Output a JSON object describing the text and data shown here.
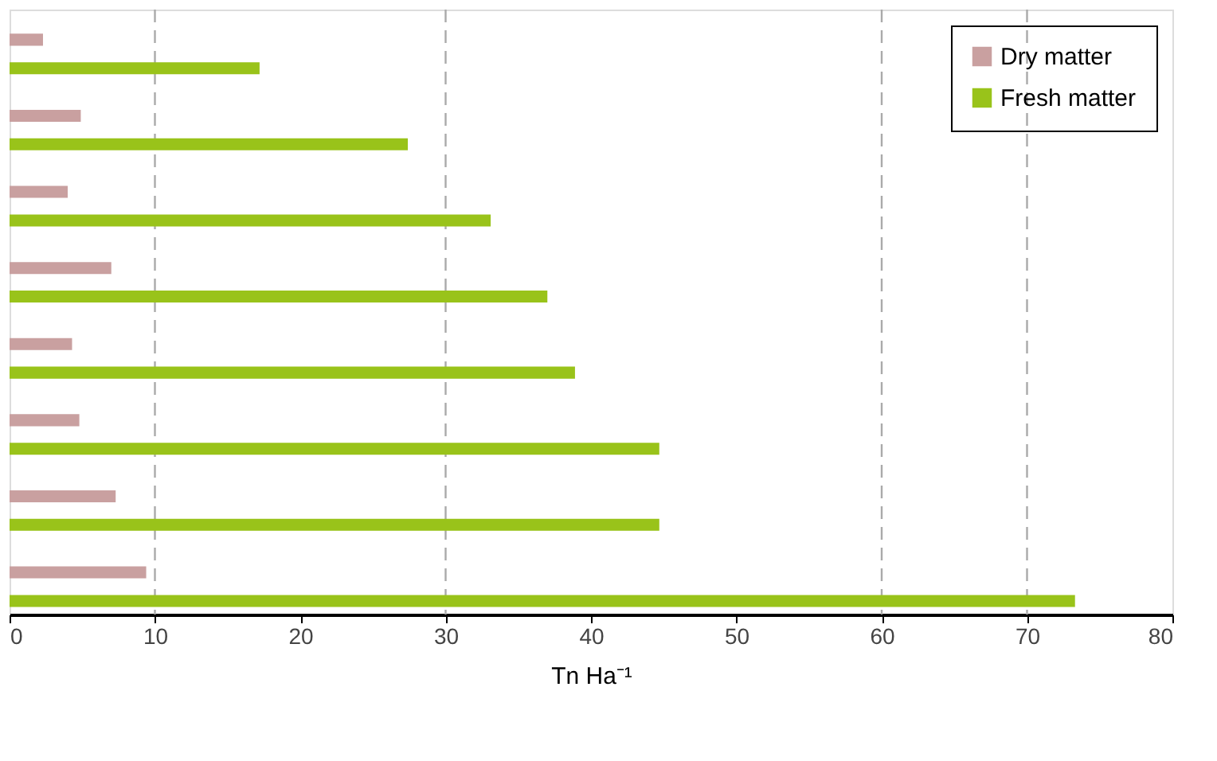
{
  "chart_data": {
    "type": "bar",
    "orientation": "horizontal",
    "xlabel": "Tn Ha⁻¹",
    "categories": [
      null,
      null,
      null,
      null,
      null,
      null,
      null,
      null
    ],
    "series": [
      {
        "name": "Dry matter",
        "color": "#c9a0a0",
        "values": [
          2.3,
          4.9,
          4.0,
          7.0,
          4.3,
          4.8,
          7.3,
          9.4
        ]
      },
      {
        "name": "Fresh matter",
        "color": "#99c31a",
        "values": [
          17.2,
          27.4,
          33.1,
          37.0,
          38.9,
          44.7,
          44.7,
          73.3
        ]
      }
    ],
    "xlim": [
      0,
      80
    ],
    "xticks": [
      0,
      10,
      20,
      30,
      40,
      50,
      60,
      70,
      80
    ],
    "ref_lines": [
      {
        "axis": "x",
        "value": 10,
        "color": "#aaaaaa",
        "line_style": "dashed"
      },
      {
        "axis": "x",
        "value": 30,
        "color": "#aaaaaa",
        "line_style": "dashed"
      },
      {
        "axis": "x",
        "value": 60,
        "color": "#aaaaaa",
        "line_style": "dashed"
      },
      {
        "axis": "x",
        "value": 70,
        "color": "#aaaaaa",
        "line_style": "dashed"
      }
    ],
    "legend": "top right",
    "tick_labels": "x"
  }
}
